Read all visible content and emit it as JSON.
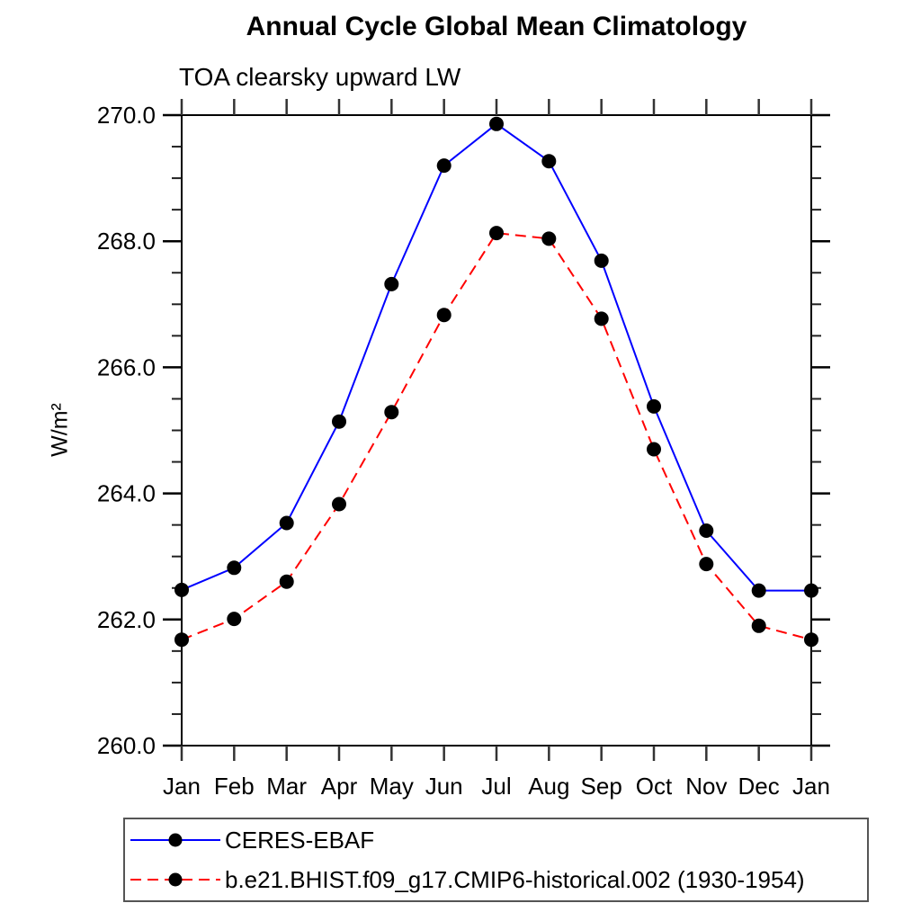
{
  "title": "Annual Cycle Global Mean Climatology",
  "subtitle": "TOA clearsky upward LW",
  "chart_data": {
    "type": "line",
    "title": "Annual Cycle Global Mean Climatology",
    "subtitle": "TOA clearsky upward LW",
    "xlabel": "",
    "ylabel": "W/m²",
    "categories": [
      "Jan",
      "Feb",
      "Mar",
      "Apr",
      "May",
      "Jun",
      "Jul",
      "Aug",
      "Sep",
      "Oct",
      "Nov",
      "Dec",
      "Jan"
    ],
    "series": [
      {
        "name": "CERES-EBAF",
        "color": "#0000ff",
        "line_style": "solid",
        "marker": "circle",
        "marker_color": "#000000",
        "values": [
          262.47,
          262.82,
          263.53,
          265.14,
          267.32,
          269.2,
          269.86,
          269.27,
          267.69,
          265.38,
          263.41,
          262.46,
          262.46
        ]
      },
      {
        "name": "b.e21.BHIST.f09_g17.CMIP6-historical.002 (1930-1954)",
        "color": "#ff0000",
        "line_style": "dashed",
        "marker": "circle",
        "marker_color": "#000000",
        "values": [
          261.68,
          262.01,
          262.6,
          263.83,
          265.29,
          266.83,
          268.13,
          268.04,
          266.77,
          264.7,
          262.88,
          261.9,
          261.68
        ]
      }
    ],
    "ylim": [
      260.0,
      270.0
    ],
    "ytick_values": [
      260,
      262,
      264,
      266,
      268,
      270
    ],
    "ytick_labels": [
      "260.0",
      "262.0",
      "264.0",
      "266.0",
      "268.0",
      "270.0"
    ],
    "yminor_step": 0.5,
    "grid": false,
    "legend_position": "bottom-left-box",
    "frame_color": "#000000"
  }
}
